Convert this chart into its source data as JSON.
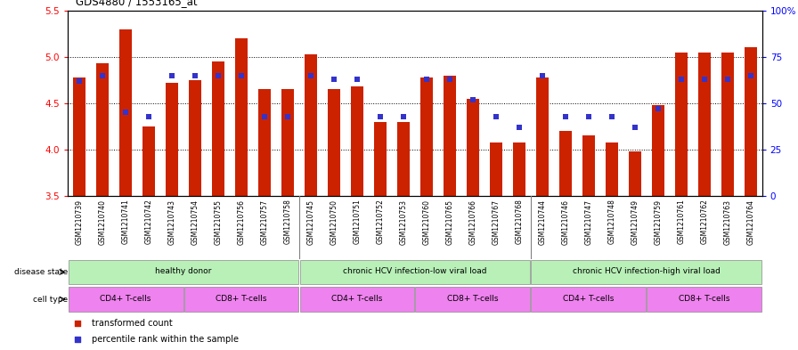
{
  "title": "GDS4880 / 1553165_at",
  "samples": [
    "GSM1210739",
    "GSM1210740",
    "GSM1210741",
    "GSM1210742",
    "GSM1210743",
    "GSM1210754",
    "GSM1210755",
    "GSM1210756",
    "GSM1210757",
    "GSM1210758",
    "GSM1210745",
    "GSM1210750",
    "GSM1210751",
    "GSM1210752",
    "GSM1210753",
    "GSM1210760",
    "GSM1210765",
    "GSM1210766",
    "GSM1210767",
    "GSM1210768",
    "GSM1210744",
    "GSM1210746",
    "GSM1210747",
    "GSM1210748",
    "GSM1210749",
    "GSM1210759",
    "GSM1210761",
    "GSM1210762",
    "GSM1210763",
    "GSM1210764"
  ],
  "bar_values": [
    4.78,
    4.93,
    5.3,
    4.25,
    4.72,
    4.75,
    4.95,
    5.2,
    4.65,
    4.65,
    5.03,
    4.65,
    4.68,
    4.3,
    4.3,
    4.78,
    4.8,
    4.55,
    4.08,
    4.08,
    4.78,
    4.2,
    4.15,
    4.08,
    3.98,
    4.48,
    5.05,
    5.05,
    5.05,
    5.1
  ],
  "percentile_values": [
    62,
    65,
    45,
    43,
    65,
    65,
    65,
    65,
    43,
    43,
    65,
    63,
    63,
    43,
    43,
    63,
    63,
    52,
    43,
    37,
    65,
    43,
    43,
    43,
    37,
    47,
    63,
    63,
    63,
    65
  ],
  "bar_bottom": 3.5,
  "ylim_left": [
    3.5,
    5.5
  ],
  "ylim_right": [
    0,
    100
  ],
  "yticks_left": [
    3.5,
    4.0,
    4.5,
    5.0,
    5.5
  ],
  "yticks_right": [
    0,
    25,
    50,
    75,
    100
  ],
  "bar_color": "#CC2200",
  "dot_color": "#3333CC",
  "grid_lines": [
    4.0,
    4.5,
    5.0
  ],
  "disease_groups": [
    {
      "label": "healthy donor",
      "start": 0,
      "end": 9
    },
    {
      "label": "chronic HCV infection-low viral load",
      "start": 10,
      "end": 19
    },
    {
      "label": "chronic HCV infection-high viral load",
      "start": 20,
      "end": 29
    }
  ],
  "cell_groups": [
    {
      "label": "CD4+ T-cells",
      "start": 0,
      "end": 4
    },
    {
      "label": "CD8+ T-cells",
      "start": 5,
      "end": 9
    },
    {
      "label": "CD4+ T-cells",
      "start": 10,
      "end": 14
    },
    {
      "label": "CD8+ T-cells",
      "start": 15,
      "end": 19
    },
    {
      "label": "CD4+ T-cells",
      "start": 20,
      "end": 24
    },
    {
      "label": "CD8+ T-cells",
      "start": 25,
      "end": 29
    }
  ],
  "disease_color": "#b8f0b8",
  "cell_color_cd4": "#EE82EE",
  "cell_color_cd8": "#EE82EE",
  "bg_color": "#f0f0f0",
  "legend_labels": [
    "transformed count",
    "percentile rank within the sample"
  ],
  "legend_colors": [
    "#CC2200",
    "#3333CC"
  ]
}
